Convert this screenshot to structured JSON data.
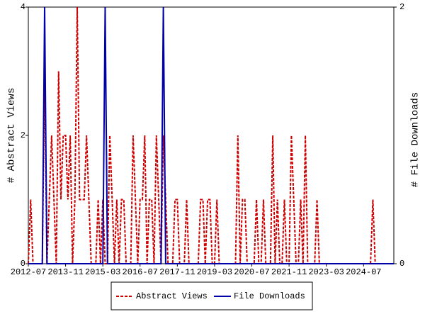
{
  "chart_data": {
    "type": "line",
    "ylabel": "# Abstract Views",
    "y2label": "# File Downloads",
    "ylim": [
      0,
      4
    ],
    "yticks": [
      0,
      2,
      4
    ],
    "y2lim": [
      0,
      2
    ],
    "y2ticks": [
      0,
      2
    ],
    "legend": "bottom",
    "categories": [
      "2012-07",
      null,
      null,
      null,
      null,
      null,
      null,
      null,
      null,
      null,
      null,
      null,
      null,
      null,
      null,
      null,
      "2013-11",
      null,
      null,
      null,
      null,
      null,
      null,
      null,
      null,
      null,
      null,
      null,
      null,
      null,
      null,
      null,
      "2015-03",
      null,
      null,
      null,
      null,
      null,
      null,
      null,
      null,
      null,
      null,
      null,
      null,
      null,
      null,
      null,
      "2016-07",
      null,
      null,
      null,
      null,
      null,
      null,
      null,
      null,
      null,
      null,
      null,
      null,
      null,
      null,
      null,
      "2017-11",
      null,
      null,
      null,
      null,
      null,
      null,
      null,
      null,
      null,
      null,
      null,
      null,
      null,
      null,
      null,
      "2019-03",
      null,
      null,
      null,
      null,
      null,
      null,
      null,
      null,
      null,
      null,
      null,
      null,
      null,
      null,
      null,
      "2020-07",
      null,
      null,
      null,
      null,
      null,
      null,
      null,
      null,
      null,
      null,
      null,
      null,
      null,
      null,
      null,
      "2021-11",
      null,
      null,
      null,
      null,
      null,
      null,
      null,
      null,
      null,
      null,
      null,
      null,
      null,
      null,
      null,
      "2023-03",
      null,
      null,
      null,
      null,
      null,
      null,
      null,
      null,
      null,
      null,
      null,
      null,
      null,
      null,
      null,
      "2024-07",
      null,
      null,
      null,
      null,
      null,
      null,
      null,
      null,
      null,
      null,
      null,
      null,
      null
    ],
    "series": [
      {
        "name": "Abstract Views",
        "color": "#cc0000",
        "dash": true,
        "axis": "y",
        "values": [
          0,
          1,
          0,
          0,
          0,
          0,
          0,
          3,
          0,
          1,
          2,
          1,
          0,
          3,
          1,
          2,
          2,
          1,
          2,
          0,
          1,
          4,
          1,
          1,
          1,
          2,
          1,
          0,
          0,
          0,
          1,
          0,
          1,
          0,
          0,
          2,
          1,
          0,
          1,
          0,
          1,
          1,
          0,
          0,
          0,
          2,
          1,
          0,
          1,
          1,
          2,
          0,
          1,
          1,
          0,
          2,
          1,
          0,
          2,
          1,
          0,
          0,
          0,
          1,
          1,
          0,
          0,
          0,
          1,
          0,
          0,
          0,
          0,
          0,
          1,
          1,
          0,
          1,
          1,
          0,
          0,
          1,
          0,
          0,
          0,
          0,
          0,
          0,
          0,
          0,
          2,
          0,
          1,
          1,
          0,
          0,
          0,
          0,
          1,
          0,
          0,
          1,
          0,
          0,
          0,
          2,
          0,
          1,
          0,
          0,
          1,
          0,
          0,
          2,
          1,
          0,
          0,
          1,
          0,
          2,
          0,
          0,
          0,
          0,
          1,
          0,
          0,
          0,
          0,
          0,
          0,
          0,
          0,
          0,
          0,
          0,
          0,
          0,
          0,
          0,
          0,
          0,
          0,
          0,
          0,
          0,
          0,
          0,
          1,
          0,
          0,
          0,
          0,
          0,
          0,
          0,
          0,
          0
        ]
      },
      {
        "name": "File Downloads",
        "color": "#0000aa",
        "dash": false,
        "axis": "y2",
        "values": [
          0,
          0,
          0,
          0,
          0,
          0,
          0,
          2,
          0,
          0,
          0,
          0,
          0,
          0,
          0,
          0,
          0,
          0,
          0,
          0,
          0,
          0,
          0,
          0,
          0,
          0,
          0,
          0,
          0,
          0,
          0,
          0,
          0,
          2,
          0,
          0,
          0,
          0,
          0,
          0,
          0,
          0,
          0,
          0,
          0,
          0,
          0,
          0,
          0,
          0,
          0,
          0,
          0,
          0,
          0,
          0,
          0,
          0,
          2,
          0,
          0,
          0,
          0,
          0,
          0,
          0,
          0,
          0,
          0,
          0,
          0,
          0,
          0,
          0,
          0,
          0,
          0,
          0,
          0,
          0,
          0,
          0,
          0,
          0,
          0,
          0,
          0,
          0,
          0,
          0,
          0,
          0,
          0,
          0,
          0,
          0,
          0,
          0,
          0,
          0,
          0,
          0,
          0,
          0,
          0,
          0,
          0,
          0,
          0,
          0,
          0,
          0,
          0,
          0,
          0,
          0,
          0,
          0,
          0,
          0,
          0,
          0,
          0,
          0,
          0,
          0,
          0,
          0,
          0,
          0,
          0,
          0,
          0,
          0,
          0,
          0,
          0,
          0,
          0,
          0,
          0,
          0,
          0,
          0,
          0,
          0,
          0,
          0,
          0,
          0,
          0,
          0,
          0,
          0,
          0,
          0,
          0,
          0
        ]
      }
    ]
  }
}
